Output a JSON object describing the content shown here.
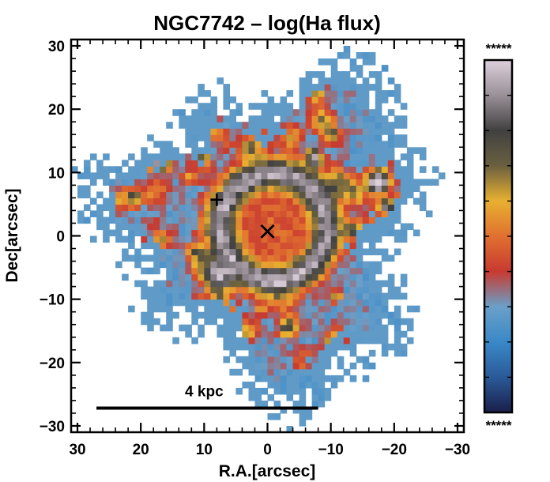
{
  "chart_data": {
    "type": "heatmap",
    "title": "NGC7742 – log(Ha flux)",
    "xlabel": "R.A.[arcsec]",
    "ylabel": "Dec[arcsec]",
    "xlim": [
      31,
      -31
    ],
    "ylim": [
      -31,
      31
    ],
    "x_inverted": true,
    "x_ticks": [
      30,
      20,
      10,
      0,
      -10,
      -20,
      -30
    ],
    "x_tick_labels": [
      "30",
      "20",
      "10",
      "0",
      "−10",
      "−20",
      "−30"
    ],
    "y_ticks": [
      30,
      20,
      10,
      0,
      -10,
      -20,
      -30
    ],
    "y_tick_labels": [
      "30",
      "20",
      "10",
      "0",
      "−10",
      "−20",
      "−30"
    ],
    "colorbar": {
      "top_label": "*****",
      "bottom_label": "*****",
      "colors": [
        "#1a1e4a",
        "#2a5a98",
        "#3a88c8",
        "#6aa0c8",
        "#c83a30",
        "#e07030",
        "#e8b030",
        "#6a6040",
        "#404040",
        "#9a9098",
        "#dcd0dc"
      ]
    },
    "markers": [
      {
        "symbol": "plus",
        "ra": 8,
        "dec": 5.7
      },
      {
        "symbol": "cross",
        "ra": 0,
        "dec": 0.7
      }
    ],
    "scale_bar": {
      "label": "4 kpc",
      "ra_start": 27,
      "ra_end": -8,
      "dec": -27.2
    }
  }
}
